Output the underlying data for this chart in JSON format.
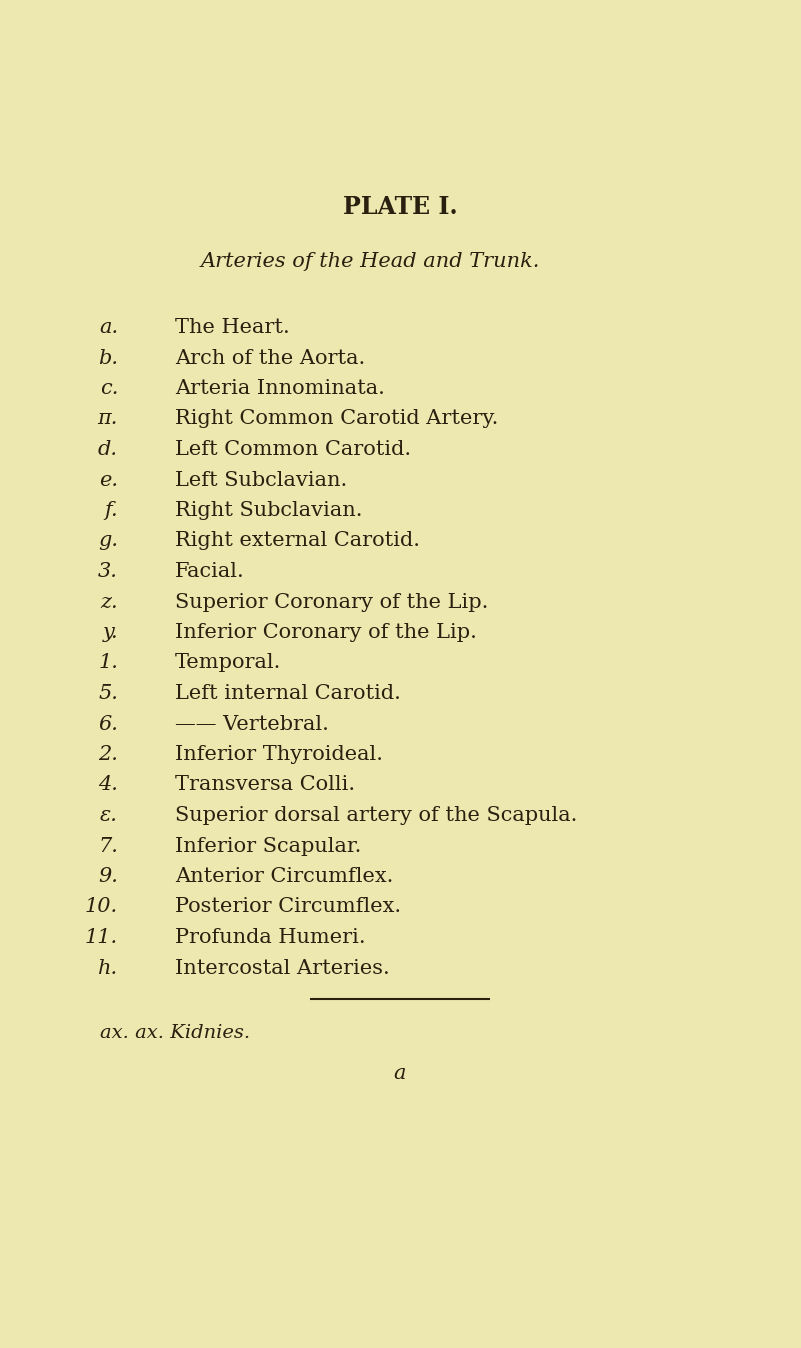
{
  "background_color": "#ede8b0",
  "title": "PLATE I.",
  "subtitle": "Arteries of the Head and Trunk.",
  "lines": [
    {
      "label": "a.",
      "text": "The Heart."
    },
    {
      "label": "b.",
      "text": "Arch of the Aorta."
    },
    {
      "label": "c.",
      "text": "Arteria Innominata."
    },
    {
      "label": "π.",
      "text": "Right Common Carotid Artery."
    },
    {
      "label": "d.",
      "text": "Left Common Carotid."
    },
    {
      "label": "e.",
      "text": "Left Subclavian."
    },
    {
      "label": "f.",
      "text": "Right Subclavian."
    },
    {
      "label": "g.",
      "text": "Right external Carotid."
    },
    {
      "label": "3.",
      "text": "Facial."
    },
    {
      "label": "z.",
      "text": "Superior Coronary of the Lip."
    },
    {
      "label": "y.",
      "text": "Inferior Coronary of the Lip."
    },
    {
      "label": "1.",
      "text": "Temporal."
    },
    {
      "label": "5.",
      "text": "Left internal Carotid."
    },
    {
      "label": "6.",
      "text": "—— Vertebral."
    },
    {
      "label": "2.",
      "text": "Inferior Thyroideal."
    },
    {
      "label": "4.",
      "text": "Transversa Colli."
    },
    {
      "label": "ε.",
      "text": "Superior dorsal artery of the Scapula."
    },
    {
      "label": "7.",
      "text": "Inferior Scapular."
    },
    {
      "label": "9.",
      "text": "Anterior Circumflex."
    },
    {
      "label": "10.",
      "text": "Posterior Circumflex."
    },
    {
      "label": "11.",
      "text": "Profunda Humeri."
    },
    {
      "label": "h.",
      "text": "Intercostal Arteries."
    }
  ],
  "footnote": "ax. ax. Kidnies.",
  "page_letter": "a",
  "text_color": "#2a2010",
  "title_fontsize": 17,
  "subtitle_fontsize": 15,
  "body_fontsize": 15,
  "footnote_fontsize": 14
}
